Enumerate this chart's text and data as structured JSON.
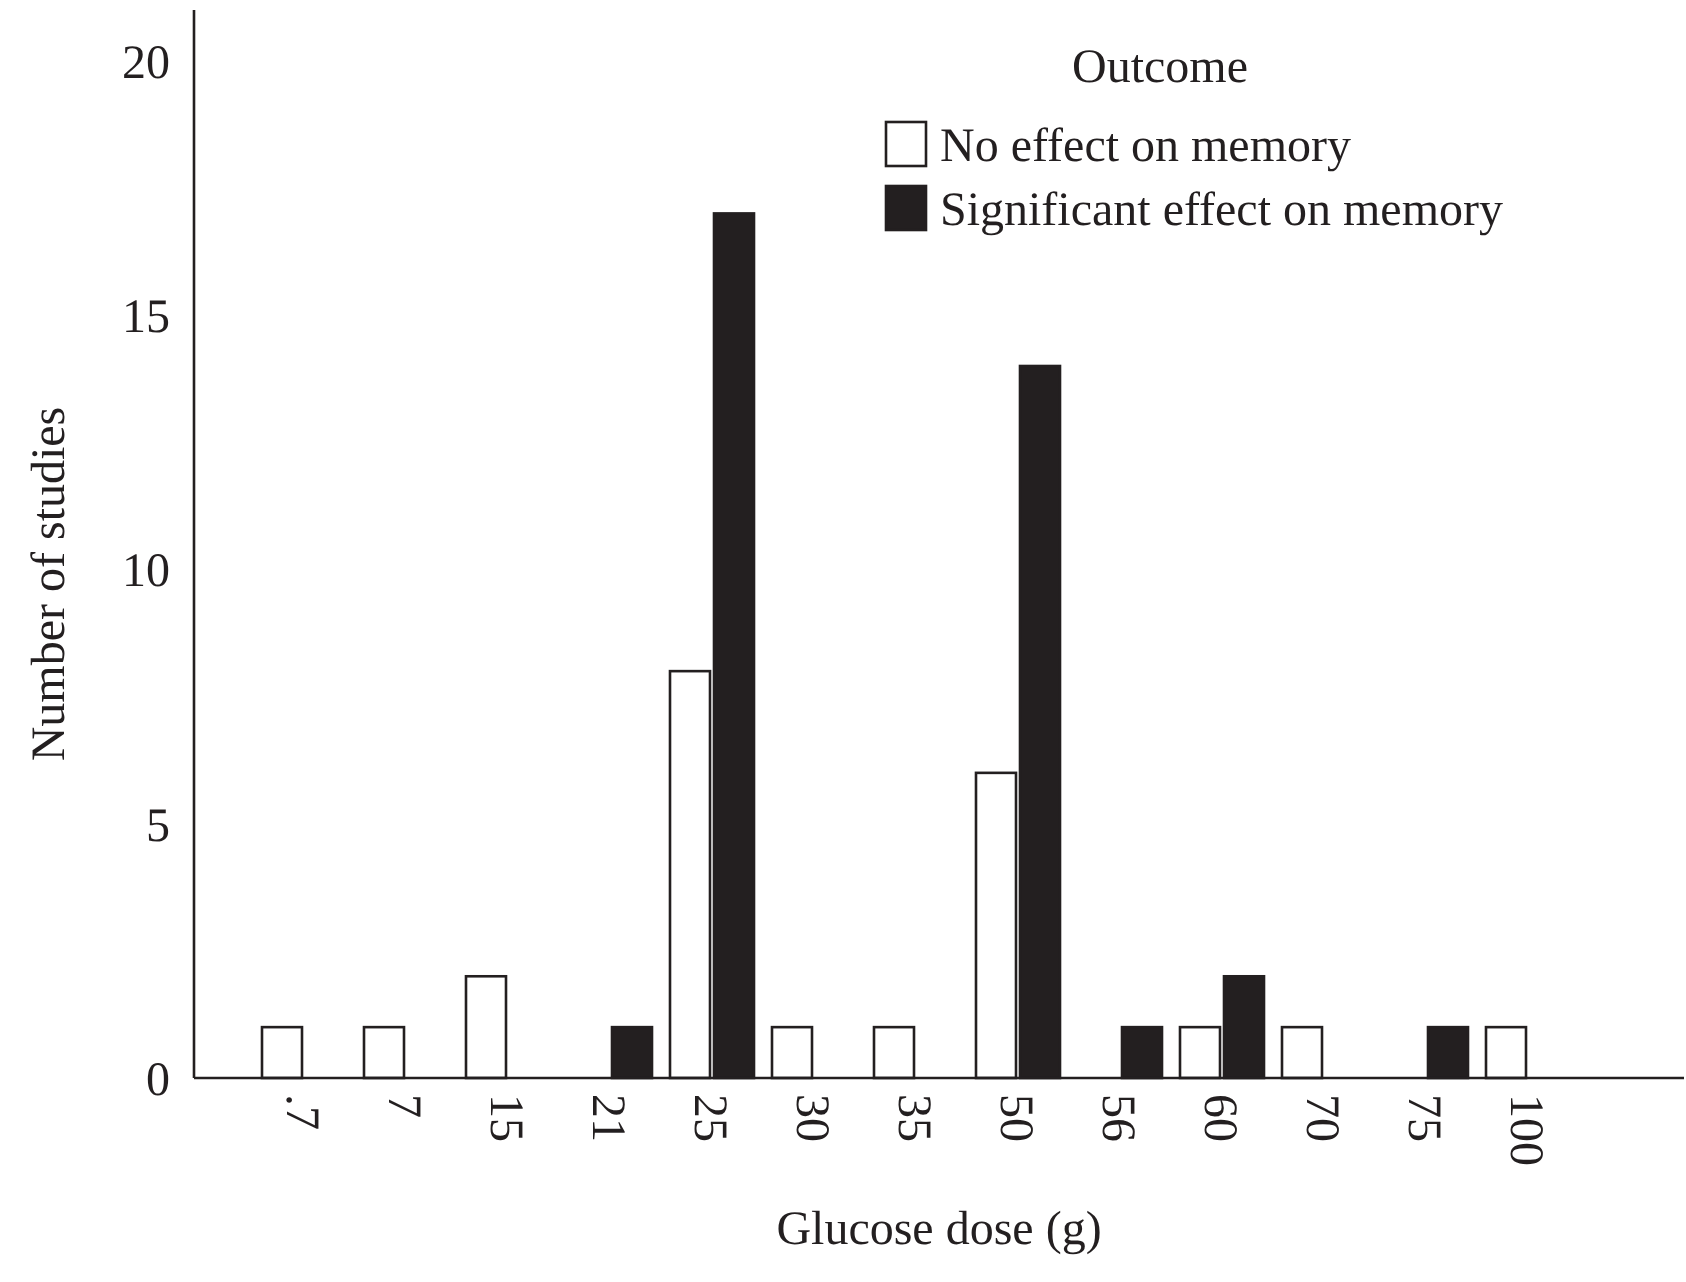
{
  "chart_data": {
    "type": "bar",
    "xlabel": "Glucose dose (g)",
    "ylabel": "Number of studies",
    "legend_title": "Outcome",
    "legend": "top right",
    "categories": [
      ".7",
      "7",
      "15",
      "21",
      "25",
      "30",
      "35",
      "50",
      "56",
      "60",
      "70",
      "75",
      "100"
    ],
    "series": [
      {
        "name": "No effect on memory",
        "color": "#ffffff",
        "values": [
          1,
          1,
          2,
          0,
          8,
          1,
          1,
          6,
          0,
          1,
          1,
          0,
          1
        ]
      },
      {
        "name": "Significant effect on memory",
        "color": "#231f20",
        "values": [
          0,
          0,
          0,
          1,
          17,
          0,
          0,
          14,
          1,
          2,
          0,
          1,
          0
        ]
      }
    ],
    "ylim": [
      0,
      21
    ],
    "yticks": [
      0,
      5,
      10,
      15,
      20
    ]
  }
}
